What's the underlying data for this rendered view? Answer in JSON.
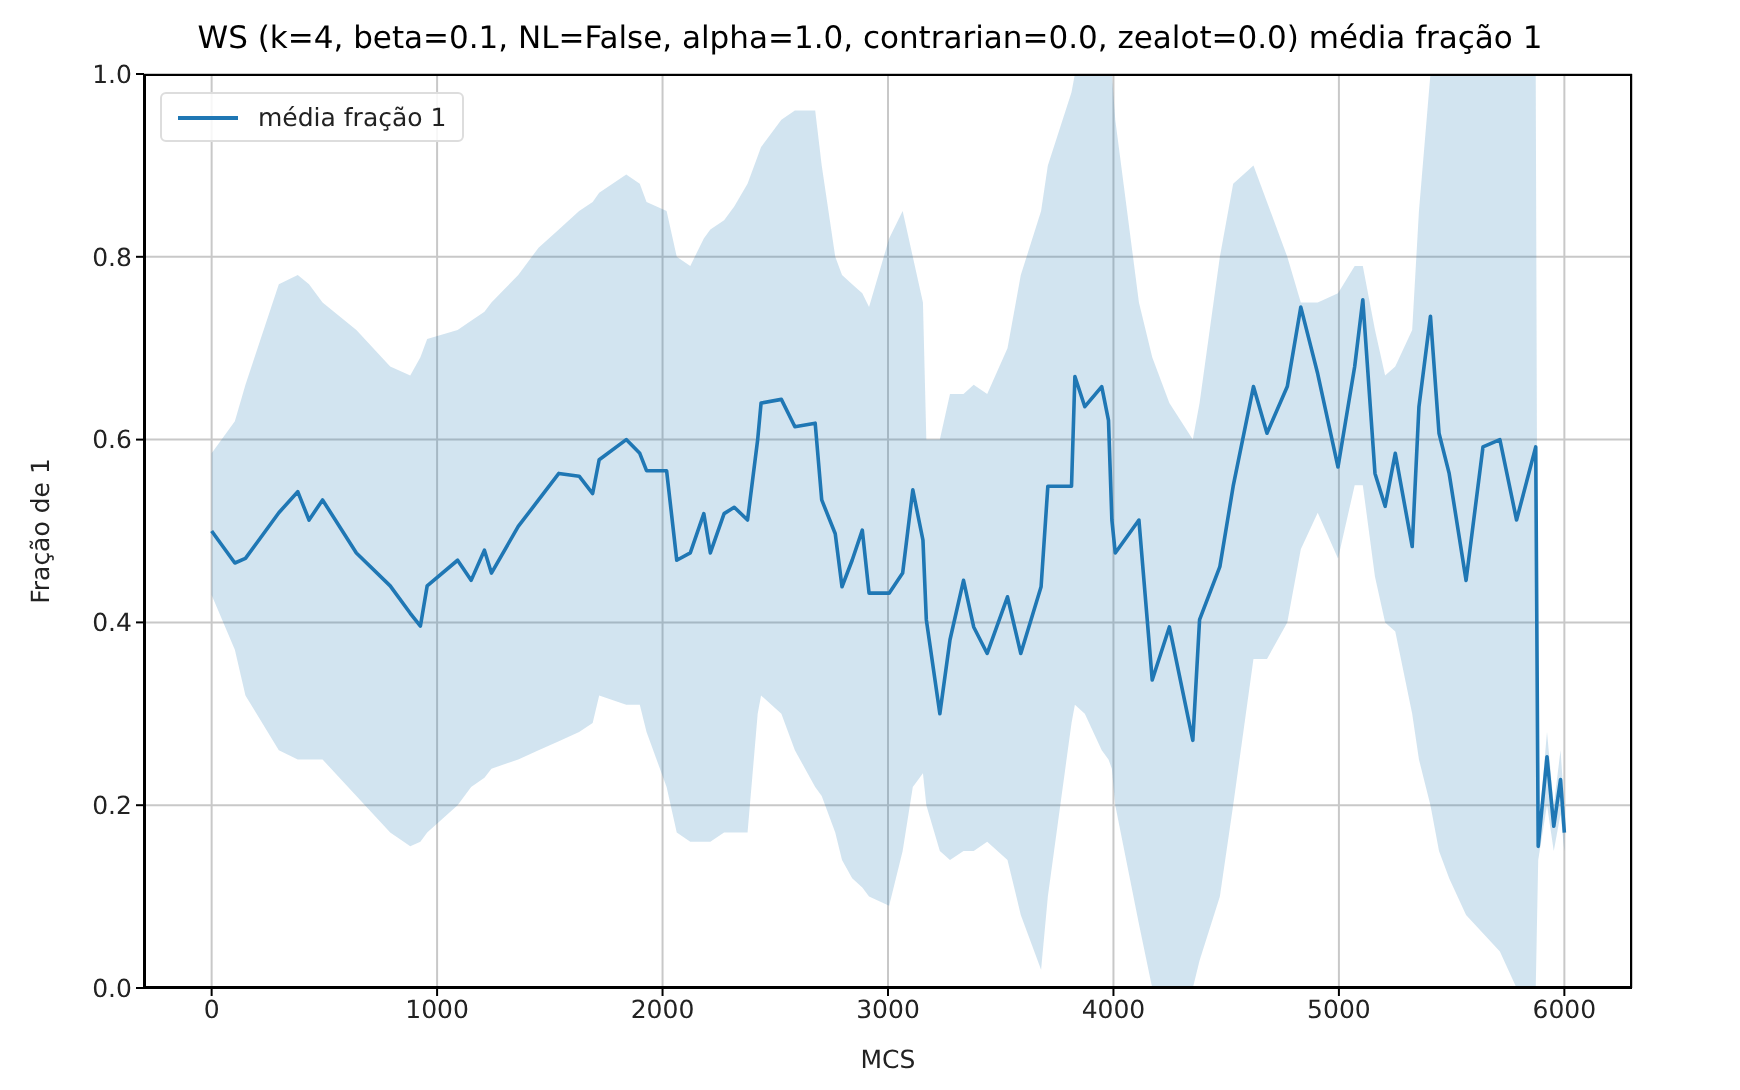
{
  "chart_data": {
    "type": "line",
    "title": "WS (k=4, beta=0.1, NL=False, alpha=1.0, contrarian=0.0, zealot=0.0) média fração 1",
    "xlabel": "MCS",
    "ylabel": "Fração de 1",
    "x": [
      0,
      103,
      150,
      298,
      382,
      432,
      492,
      642,
      792,
      881,
      926,
      956,
      1091,
      1151,
      1210,
      1241,
      1360,
      1450,
      1540,
      1630,
      1690,
      1719,
      1839,
      1899,
      1929,
      2018,
      2063,
      2123,
      2183,
      2212,
      2273,
      2318,
      2377,
      2422,
      2437,
      2527,
      2587,
      2677,
      2706,
      2766,
      2796,
      2841,
      2886,
      2916,
      3005,
      3065,
      3110,
      3155,
      3170,
      3230,
      3275,
      3335,
      3380,
      3440,
      3530,
      3589,
      3679,
      3709,
      3814,
      3829,
      3873,
      3948,
      3978,
      3993,
      4008,
      4113,
      4172,
      4248,
      4352,
      4382,
      4472,
      4531,
      4621,
      4681,
      4771,
      4831,
      4906,
      4996,
      5070,
      5106,
      5160,
      5205,
      5250,
      5325,
      5355,
      5406,
      5444,
      5489,
      5564,
      5639,
      5714,
      5788,
      5873,
      5884,
      5923,
      5953,
      5983,
      6000
    ],
    "series": [
      {
        "name": "média fração 1",
        "color": "#1f77b4",
        "values": [
          0.5,
          0.465,
          0.47,
          0.52,
          0.543,
          0.512,
          0.534,
          0.476,
          0.44,
          0.41,
          0.396,
          0.44,
          0.468,
          0.446,
          0.479,
          0.454,
          0.505,
          0.534,
          0.563,
          0.56,
          0.541,
          0.578,
          0.6,
          0.585,
          0.566,
          0.566,
          0.468,
          0.476,
          0.519,
          0.476,
          0.519,
          0.526,
          0.512,
          0.6,
          0.64,
          0.644,
          0.614,
          0.618,
          0.534,
          0.497,
          0.439,
          0.468,
          0.501,
          0.432,
          0.432,
          0.454,
          0.545,
          0.49,
          0.403,
          0.3,
          0.381,
          0.446,
          0.395,
          0.366,
          0.428,
          0.366,
          0.439,
          0.549,
          0.549,
          0.669,
          0.636,
          0.658,
          0.621,
          0.512,
          0.476,
          0.512,
          0.337,
          0.395,
          0.271,
          0.403,
          0.461,
          0.549,
          0.658,
          0.607,
          0.658,
          0.745,
          0.672,
          0.57,
          0.68,
          0.753,
          0.563,
          0.527,
          0.585,
          0.483,
          0.636,
          0.735,
          0.607,
          0.563,
          0.446,
          0.592,
          0.6,
          0.512,
          0.592,
          0.155,
          0.253,
          0.177,
          0.228,
          0.17
        ],
        "lower": [
          0.43,
          0.37,
          0.32,
          0.26,
          0.25,
          0.25,
          0.25,
          0.21,
          0.17,
          0.155,
          0.16,
          0.17,
          0.2,
          0.22,
          0.23,
          0.24,
          0.25,
          0.26,
          0.27,
          0.28,
          0.29,
          0.32,
          0.31,
          0.31,
          0.28,
          0.22,
          0.17,
          0.16,
          0.16,
          0.16,
          0.17,
          0.17,
          0.17,
          0.3,
          0.32,
          0.3,
          0.26,
          0.22,
          0.21,
          0.17,
          0.14,
          0.12,
          0.11,
          0.1,
          0.09,
          0.15,
          0.22,
          0.235,
          0.2,
          0.15,
          0.14,
          0.15,
          0.15,
          0.16,
          0.14,
          0.08,
          0.02,
          0.1,
          0.29,
          0.31,
          0.3,
          0.26,
          0.25,
          0.24,
          0.2,
          0.07,
          0.0,
          0.0,
          0.0,
          0.03,
          0.1,
          0.2,
          0.36,
          0.36,
          0.4,
          0.48,
          0.52,
          0.47,
          0.55,
          0.55,
          0.45,
          0.4,
          0.39,
          0.3,
          0.25,
          0.2,
          0.15,
          0.12,
          0.08,
          0.06,
          0.04,
          0.0,
          0.0,
          0.14,
          0.2,
          0.15,
          0.19,
          0.15
        ],
        "upper": [
          0.585,
          0.62,
          0.66,
          0.77,
          0.78,
          0.77,
          0.75,
          0.72,
          0.68,
          0.67,
          0.69,
          0.71,
          0.72,
          0.73,
          0.74,
          0.75,
          0.78,
          0.81,
          0.83,
          0.85,
          0.86,
          0.87,
          0.89,
          0.88,
          0.86,
          0.85,
          0.8,
          0.79,
          0.82,
          0.83,
          0.84,
          0.855,
          0.88,
          0.91,
          0.92,
          0.95,
          0.96,
          0.96,
          0.9,
          0.8,
          0.78,
          0.77,
          0.76,
          0.745,
          0.82,
          0.85,
          0.8,
          0.75,
          0.6,
          0.6,
          0.65,
          0.65,
          0.66,
          0.65,
          0.7,
          0.78,
          0.85,
          0.9,
          0.98,
          1.0,
          1.0,
          1.0,
          1.0,
          1.0,
          0.95,
          0.75,
          0.69,
          0.64,
          0.6,
          0.64,
          0.8,
          0.88,
          0.9,
          0.86,
          0.8,
          0.75,
          0.75,
          0.76,
          0.79,
          0.79,
          0.72,
          0.67,
          0.68,
          0.72,
          0.85,
          1.0,
          1.0,
          1.0,
          1.0,
          1.0,
          1.0,
          1.0,
          1.0,
          0.17,
          0.28,
          0.2,
          0.26,
          0.2
        ]
      }
    ],
    "xlim": [
      -300,
      6300
    ],
    "xticks": [
      0,
      1000,
      2000,
      3000,
      4000,
      5000,
      6000
    ],
    "ylim": [
      0,
      1
    ],
    "yticks": [
      {
        "value": 0,
        "label": "0.0"
      },
      {
        "value": 0.2,
        "label": "0.2"
      },
      {
        "value": 0.4,
        "label": "0.4"
      },
      {
        "value": 0.6,
        "label": "0.6"
      },
      {
        "value": 0.8,
        "label": "0.8"
      },
      {
        "value": 1,
        "label": "1.0"
      }
    ],
    "grid": true,
    "legend": "top left",
    "line_style": "solid",
    "marker": "none"
  }
}
